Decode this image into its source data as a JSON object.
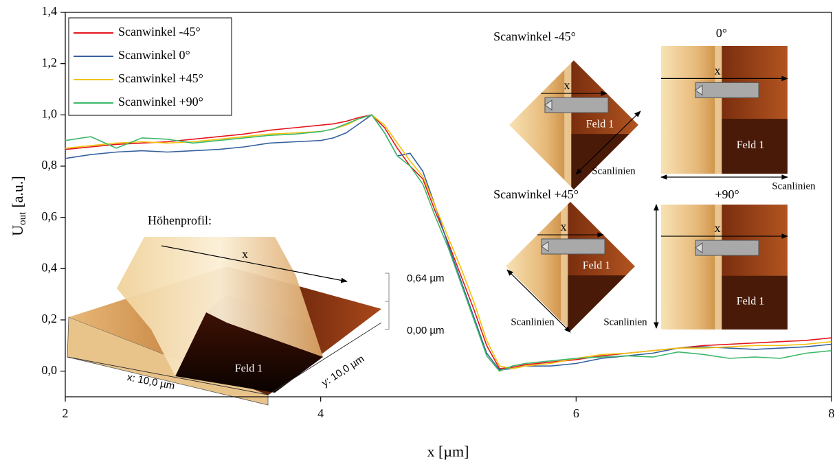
{
  "chart_data": {
    "type": "line",
    "x_label": "x [µm]",
    "y_label": {
      "main": "U",
      "subscript": "out",
      "unit": "[a.u.]"
    },
    "xlim": [
      2,
      8
    ],
    "xticks": [
      2,
      4,
      6,
      8
    ],
    "ylim": [
      -0.1,
      1.4
    ],
    "yticks": [
      {
        "value": 0,
        "label": "0,0"
      },
      {
        "value": 0.2,
        "label": "0,2"
      },
      {
        "value": 0.4,
        "label": "0,4"
      },
      {
        "value": 0.6,
        "label": "0,6"
      },
      {
        "value": 0.8,
        "label": "0,8"
      },
      {
        "value": 1.0,
        "label": "1,0"
      },
      {
        "value": 1.2,
        "label": "1,2"
      },
      {
        "value": 1.4,
        "label": "1,4"
      }
    ],
    "legend": "upper-left",
    "x": [
      2.0,
      2.2,
      2.4,
      2.6,
      2.8,
      3.0,
      3.2,
      3.4,
      3.6,
      3.8,
      4.0,
      4.1,
      4.2,
      4.3,
      4.4,
      4.5,
      4.6,
      4.7,
      4.8,
      4.9,
      5.0,
      5.1,
      5.2,
      5.3,
      5.4,
      5.5,
      5.6,
      5.8,
      6.0,
      6.2,
      6.4,
      6.6,
      6.8,
      7.0,
      7.2,
      7.4,
      7.6,
      7.8,
      8.0
    ],
    "series": [
      {
        "name": "Scanwinkel -45°",
        "color": "#e3141b",
        "values": [
          0.865,
          0.875,
          0.885,
          0.89,
          0.895,
          0.905,
          0.915,
          0.925,
          0.94,
          0.95,
          0.96,
          0.965,
          0.975,
          0.99,
          1.0,
          0.95,
          0.87,
          0.8,
          0.75,
          0.62,
          0.5,
          0.37,
          0.24,
          0.1,
          0.01,
          0.015,
          0.025,
          0.035,
          0.045,
          0.06,
          0.07,
          0.08,
          0.09,
          0.1,
          0.105,
          0.11,
          0.115,
          0.12,
          0.13
        ]
      },
      {
        "name": "Scanwinkel 0°",
        "color": "#35609e",
        "values": [
          0.83,
          0.845,
          0.855,
          0.86,
          0.855,
          0.86,
          0.865,
          0.875,
          0.89,
          0.895,
          0.9,
          0.91,
          0.93,
          0.965,
          1.0,
          0.93,
          0.84,
          0.85,
          0.78,
          0.64,
          0.49,
          0.35,
          0.21,
          0.07,
          0.005,
          0.01,
          0.02,
          0.02,
          0.03,
          0.05,
          0.06,
          0.07,
          0.09,
          0.095,
          0.09,
          0.085,
          0.09,
          0.095,
          0.105
        ]
      },
      {
        "name": "Scanwinkel +45°",
        "color": "#f2c20c",
        "values": [
          0.87,
          0.88,
          0.89,
          0.895,
          0.89,
          0.895,
          0.905,
          0.915,
          0.925,
          0.93,
          0.935,
          0.945,
          0.96,
          0.985,
          1.0,
          0.96,
          0.89,
          0.82,
          0.76,
          0.64,
          0.52,
          0.4,
          0.27,
          0.12,
          0.02,
          0.01,
          0.02,
          0.03,
          0.05,
          0.065,
          0.07,
          0.08,
          0.09,
          0.09,
          0.095,
          0.1,
          0.1,
          0.105,
          0.115
        ]
      },
      {
        "name": "Scanwinkel +90°",
        "color": "#3cb86a",
        "values": [
          0.9,
          0.915,
          0.87,
          0.91,
          0.905,
          0.89,
          0.9,
          0.91,
          0.92,
          0.925,
          0.935,
          0.945,
          0.965,
          0.985,
          1.0,
          0.93,
          0.84,
          0.8,
          0.73,
          0.6,
          0.48,
          0.34,
          0.2,
          0.06,
          0.0,
          0.02,
          0.03,
          0.04,
          0.05,
          0.055,
          0.06,
          0.055,
          0.075,
          0.065,
          0.05,
          0.055,
          0.05,
          0.07,
          0.08
        ]
      }
    ],
    "insets": {
      "height_profile": {
        "title": "Höhenprofil:",
        "arrow_label": "x",
        "field_label": "Feld 1",
        "z_max": "0,64 µm",
        "z_min": "0,00 µm",
        "x_size": "x: 10,0 µm",
        "y_size": "y: 10,0 µm"
      },
      "scans": [
        {
          "title": "Scanwinkel -45°",
          "arrow_label": "x",
          "field_label": "Feld 1",
          "scanline_label": "Scanlinien"
        },
        {
          "title": "0°",
          "arrow_label": "x",
          "field_label": "Feld 1",
          "scanline_label": "Scanlinien"
        },
        {
          "title": "Scanwinkel +45°",
          "arrow_label": "x",
          "field_label": "Feld 1",
          "scanline_label": "Scanlinien"
        },
        {
          "title": "+90°",
          "arrow_label": "x",
          "field_label": "Feld 1",
          "scanline_label": "Scanlinien"
        }
      ]
    }
  }
}
